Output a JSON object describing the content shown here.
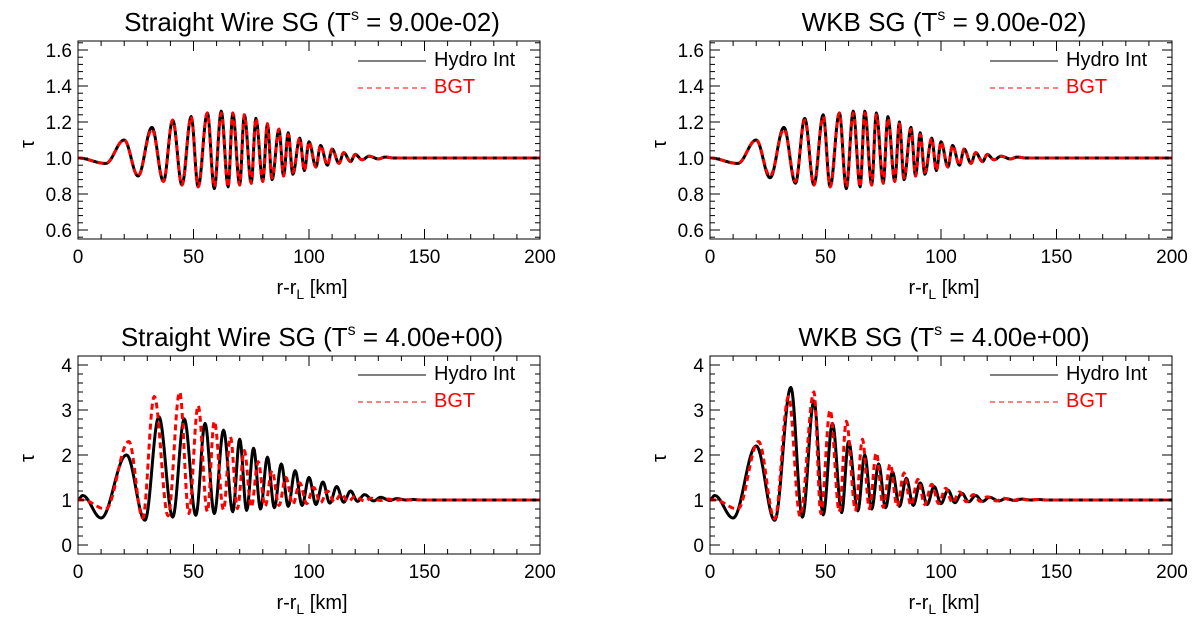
{
  "figure": {
    "panels": [
      {
        "title_prefix": "Straight Wire SG (T",
        "title_sup": "s",
        "title_suffix": " =  9.00e-02)",
        "xlabel_main": "r-r",
        "xlabel_sub": "L",
        "xlabel_tail": " [km]",
        "ylabel": "τ",
        "legend": [
          "Hydro Int",
          "BGT"
        ]
      },
      {
        "title_prefix": "WKB SG (T",
        "title_sup": "s",
        "title_suffix": " =  9.00e-02)",
        "xlabel_main": "r-r",
        "xlabel_sub": "L",
        "xlabel_tail": " [km]",
        "ylabel": "τ",
        "legend": [
          "Hydro Int",
          "BGT"
        ]
      },
      {
        "title_prefix": "Straight Wire SG (T",
        "title_sup": "s",
        "title_suffix": " =  4.00e+00)",
        "xlabel_main": "r-r",
        "xlabel_sub": "L",
        "xlabel_tail": " [km]",
        "ylabel": "τ",
        "legend": [
          "Hydro Int",
          "BGT"
        ]
      },
      {
        "title_prefix": "WKB SG (T",
        "title_sup": "s",
        "title_suffix": " =  4.00e+00)",
        "xlabel_main": "r-r",
        "xlabel_sub": "L",
        "xlabel_tail": " [km]",
        "ylabel": "τ",
        "legend": [
          "Hydro Int",
          "BGT"
        ]
      }
    ]
  },
  "chart_data": [
    {
      "type": "line",
      "title": "Straight Wire SG (T^s =  9.00e-02)",
      "xlabel": "r-r_L [km]",
      "ylabel": "τ",
      "xlim": [
        0,
        200
      ],
      "ylim": [
        0.55,
        1.65
      ],
      "xticks": [
        "0",
        "50",
        "100",
        "150",
        "200"
      ],
      "yticks": [
        "0.6",
        "0.8",
        "1.0",
        "1.2",
        "1.4",
        "1.6"
      ],
      "legend_position": "top-right",
      "series": [
        {
          "name": "Hydro Int",
          "color": "#000000",
          "style": "solid",
          "peak_x": [
            20,
            32,
            41,
            49,
            56,
            62,
            67,
            72,
            77,
            82,
            87,
            91,
            96,
            100,
            105,
            110,
            115,
            120,
            126,
            133
          ],
          "peak_y": [
            1.1,
            1.17,
            1.21,
            1.23,
            1.25,
            1.26,
            1.25,
            1.24,
            1.22,
            1.19,
            1.16,
            1.14,
            1.11,
            1.09,
            1.07,
            1.05,
            1.03,
            1.02,
            1.01,
            1.005
          ],
          "trough_x": [
            12,
            26,
            37,
            45,
            52,
            59,
            65,
            70,
            75,
            80,
            84,
            89,
            93,
            98,
            103,
            108,
            113,
            118,
            123,
            130
          ],
          "trough_y": [
            0.97,
            0.9,
            0.87,
            0.85,
            0.84,
            0.83,
            0.84,
            0.85,
            0.86,
            0.87,
            0.88,
            0.9,
            0.91,
            0.93,
            0.95,
            0.96,
            0.97,
            0.98,
            0.99,
            0.995
          ]
        },
        {
          "name": "BGT",
          "color": "#ff0000",
          "style": "dashed",
          "peak_x": [
            20,
            32,
            41,
            49,
            56,
            62,
            67,
            72,
            77,
            82,
            87,
            91,
            96,
            100,
            105,
            110,
            115,
            120,
            126,
            133
          ],
          "peak_y": [
            1.1,
            1.16,
            1.21,
            1.23,
            1.25,
            1.25,
            1.25,
            1.24,
            1.22,
            1.19,
            1.16,
            1.13,
            1.11,
            1.09,
            1.07,
            1.05,
            1.03,
            1.02,
            1.01,
            1.005
          ],
          "trough_x": [
            12,
            26,
            37,
            45,
            52,
            59,
            65,
            70,
            75,
            80,
            84,
            89,
            93,
            98,
            103,
            108,
            113,
            118,
            123,
            130
          ],
          "trough_y": [
            0.97,
            0.9,
            0.87,
            0.85,
            0.84,
            0.84,
            0.84,
            0.85,
            0.86,
            0.87,
            0.89,
            0.9,
            0.92,
            0.93,
            0.95,
            0.96,
            0.97,
            0.98,
            0.99,
            0.995
          ]
        }
      ]
    },
    {
      "type": "line",
      "title": "WKB SG (T^s =  9.00e-02)",
      "xlabel": "r-r_L [km]",
      "ylabel": "τ",
      "xlim": [
        0,
        200
      ],
      "ylim": [
        0.55,
        1.65
      ],
      "xticks": [
        "0",
        "50",
        "100",
        "150",
        "200"
      ],
      "yticks": [
        "0.6",
        "0.8",
        "1.0",
        "1.2",
        "1.4",
        "1.6"
      ],
      "legend_position": "top-right",
      "series": [
        {
          "name": "Hydro Int",
          "color": "#000000",
          "style": "solid",
          "peak_x": [
            20,
            32,
            41,
            49,
            56,
            62,
            67,
            72,
            77,
            82,
            87,
            91,
            96,
            100,
            105,
            110,
            115,
            120,
            126,
            133
          ],
          "peak_y": [
            1.1,
            1.17,
            1.22,
            1.24,
            1.25,
            1.26,
            1.26,
            1.25,
            1.23,
            1.2,
            1.17,
            1.14,
            1.11,
            1.09,
            1.07,
            1.05,
            1.03,
            1.02,
            1.01,
            1.005
          ],
          "trough_x": [
            12,
            26,
            37,
            45,
            52,
            59,
            65,
            70,
            75,
            80,
            84,
            89,
            93,
            98,
            103,
            108,
            113,
            118,
            123,
            130
          ],
          "trough_y": [
            0.97,
            0.89,
            0.86,
            0.85,
            0.84,
            0.83,
            0.84,
            0.85,
            0.86,
            0.87,
            0.88,
            0.9,
            0.91,
            0.93,
            0.95,
            0.96,
            0.97,
            0.98,
            0.99,
            0.995
          ]
        },
        {
          "name": "BGT",
          "color": "#ff0000",
          "style": "dashed",
          "peak_x": [
            20,
            32,
            41,
            49,
            56,
            62,
            67,
            72,
            77,
            82,
            87,
            91,
            96,
            100,
            105,
            110,
            115,
            120,
            126,
            133
          ],
          "peak_y": [
            1.1,
            1.16,
            1.21,
            1.23,
            1.25,
            1.25,
            1.25,
            1.24,
            1.22,
            1.19,
            1.16,
            1.13,
            1.11,
            1.09,
            1.07,
            1.05,
            1.03,
            1.02,
            1.01,
            1.005
          ],
          "trough_x": [
            12,
            26,
            37,
            45,
            52,
            59,
            65,
            70,
            75,
            80,
            84,
            89,
            93,
            98,
            103,
            108,
            113,
            118,
            123,
            130
          ],
          "trough_y": [
            0.97,
            0.9,
            0.87,
            0.85,
            0.84,
            0.84,
            0.84,
            0.85,
            0.86,
            0.87,
            0.89,
            0.9,
            0.92,
            0.93,
            0.95,
            0.96,
            0.97,
            0.98,
            0.99,
            0.995
          ]
        }
      ]
    },
    {
      "type": "line",
      "title": "Straight Wire SG (T^s =  4.00e+00)",
      "xlabel": "r-r_L [km]",
      "ylabel": "τ",
      "xlim": [
        0,
        200
      ],
      "ylim": [
        -0.2,
        4.2
      ],
      "xticks": [
        "0",
        "50",
        "100",
        "150",
        "200"
      ],
      "yticks": [
        "0",
        "1",
        "2",
        "3",
        "4"
      ],
      "legend_position": "top-right",
      "series": [
        {
          "name": "Hydro Int",
          "color": "#000000",
          "style": "solid",
          "peak_x": [
            2,
            21,
            35,
            46,
            55,
            63,
            70,
            76,
            82,
            88,
            94,
            100,
            106,
            112,
            118,
            124,
            131,
            138,
            145
          ],
          "peak_y": [
            1.1,
            2.0,
            2.85,
            2.8,
            2.7,
            2.55,
            2.35,
            2.15,
            1.95,
            1.8,
            1.65,
            1.5,
            1.4,
            1.3,
            1.2,
            1.12,
            1.06,
            1.03,
            1.01
          ],
          "trough_x": [
            10,
            29,
            41,
            51,
            59,
            67,
            73,
            79,
            85,
            91,
            97,
            103,
            109,
            115,
            121,
            128,
            135,
            142
          ],
          "trough_y": [
            0.6,
            0.55,
            0.62,
            0.66,
            0.7,
            0.74,
            0.77,
            0.8,
            0.83,
            0.86,
            0.88,
            0.9,
            0.93,
            0.95,
            0.97,
            0.98,
            0.99,
            1.0
          ]
        },
        {
          "name": "BGT",
          "color": "#ff0000",
          "style": "dashed",
          "peak_x": [
            2,
            22,
            33,
            44,
            52,
            59,
            66,
            72,
            78,
            84,
            90,
            96,
            102,
            108,
            114,
            120,
            127,
            134,
            141
          ],
          "peak_y": [
            1.0,
            2.3,
            3.3,
            3.4,
            3.1,
            2.75,
            2.4,
            2.1,
            1.85,
            1.65,
            1.5,
            1.38,
            1.28,
            1.2,
            1.13,
            1.08,
            1.04,
            1.02,
            1.01
          ],
          "trough_x": [
            12,
            28,
            39,
            48,
            56,
            63,
            69,
            75,
            81,
            87,
            93,
            99,
            105,
            111,
            117,
            124,
            131,
            138
          ],
          "trough_y": [
            0.8,
            0.6,
            0.65,
            0.7,
            0.74,
            0.78,
            0.81,
            0.84,
            0.86,
            0.88,
            0.9,
            0.92,
            0.94,
            0.96,
            0.97,
            0.98,
            0.99,
            1.0
          ]
        }
      ]
    },
    {
      "type": "line",
      "title": "WKB SG (T^s =  4.00e+00)",
      "xlabel": "r-r_L [km]",
      "ylabel": "τ",
      "xlim": [
        0,
        200
      ],
      "ylim": [
        -0.2,
        4.2
      ],
      "xticks": [
        "0",
        "50",
        "100",
        "150",
        "200"
      ],
      "yticks": [
        "0",
        "1",
        "2",
        "3",
        "4"
      ],
      "legend_position": "top-right",
      "series": [
        {
          "name": "Hydro Int",
          "color": "#000000",
          "style": "solid",
          "peak_x": [
            2,
            20,
            35,
            45,
            53,
            60,
            67,
            73,
            79,
            85,
            91,
            97,
            103,
            109,
            115,
            121,
            128,
            135,
            142
          ],
          "peak_y": [
            1.1,
            2.2,
            3.5,
            3.2,
            2.7,
            2.3,
            2.0,
            1.8,
            1.62,
            1.48,
            1.38,
            1.3,
            1.22,
            1.15,
            1.1,
            1.06,
            1.03,
            1.02,
            1.01
          ],
          "trough_x": [
            10,
            28,
            40,
            49,
            57,
            64,
            70,
            76,
            82,
            88,
            94,
            100,
            106,
            112,
            118,
            125,
            132,
            139
          ],
          "trough_y": [
            0.6,
            0.55,
            0.62,
            0.67,
            0.72,
            0.76,
            0.8,
            0.83,
            0.86,
            0.88,
            0.9,
            0.92,
            0.94,
            0.96,
            0.97,
            0.98,
            0.99,
            1.0
          ]
        },
        {
          "name": "BGT",
          "color": "#ff0000",
          "style": "dashed",
          "peak_x": [
            2,
            21,
            34,
            45,
            52,
            59,
            66,
            72,
            78,
            84,
            90,
            96,
            102,
            108,
            114,
            120,
            127,
            134,
            141
          ],
          "peak_y": [
            1.0,
            2.3,
            3.3,
            3.4,
            3.0,
            2.75,
            2.35,
            2.05,
            1.8,
            1.6,
            1.46,
            1.35,
            1.26,
            1.18,
            1.12,
            1.07,
            1.04,
            1.02,
            1.01
          ],
          "trough_x": [
            12,
            28,
            39,
            48,
            56,
            63,
            69,
            75,
            81,
            87,
            93,
            99,
            105,
            111,
            117,
            124,
            131,
            138
          ],
          "trough_y": [
            0.8,
            0.58,
            0.64,
            0.7,
            0.74,
            0.78,
            0.81,
            0.84,
            0.86,
            0.88,
            0.9,
            0.92,
            0.94,
            0.96,
            0.97,
            0.98,
            0.99,
            1.0
          ]
        }
      ]
    }
  ]
}
